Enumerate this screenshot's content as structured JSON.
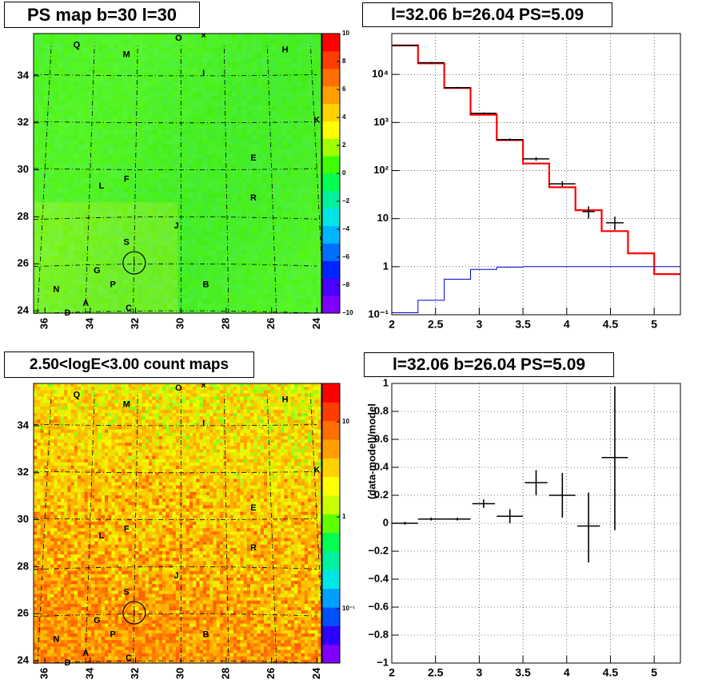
{
  "panels": {
    "ps_map": {
      "title": "PS map b=30 l=30"
    },
    "spectrum": {
      "title": "l=32.06 b=26.04 PS=5.09"
    },
    "count_map": {
      "title": "2.50<logE<3.00 count maps"
    },
    "residual": {
      "title": "l=32.06 b=26.04 PS=5.09"
    }
  },
  "map_axes": {
    "x_ticks": [
      "36",
      "34",
      "32",
      "30",
      "28",
      "26",
      "24"
    ],
    "y_ticks": [
      "24",
      "26",
      "28",
      "30",
      "32",
      "34"
    ],
    "x_range": [
      36.5,
      23.8
    ],
    "y_range": [
      23.9,
      35.8
    ]
  },
  "source_labels": [
    {
      "name": "Q",
      "l": 34.6,
      "b": 35.3
    },
    {
      "name": "O",
      "l": 30.1,
      "b": 35.6
    },
    {
      "name": "×",
      "l": 29.0,
      "b": 35.7
    },
    {
      "name": "M",
      "l": 32.4,
      "b": 34.9
    },
    {
      "name": "H",
      "l": 25.4,
      "b": 35.1
    },
    {
      "name": "I",
      "l": 29.0,
      "b": 34.1
    },
    {
      "name": "K",
      "l": 24.0,
      "b": 32.1
    },
    {
      "name": "E",
      "l": 26.8,
      "b": 30.5
    },
    {
      "name": "F",
      "l": 32.4,
      "b": 29.6
    },
    {
      "name": "L",
      "l": 33.5,
      "b": 29.3
    },
    {
      "name": "R",
      "l": 26.8,
      "b": 28.8
    },
    {
      "name": "J",
      "l": 30.2,
      "b": 27.6
    },
    {
      "name": "S",
      "l": 32.4,
      "b": 26.9
    },
    {
      "name": "G",
      "l": 33.7,
      "b": 25.7
    },
    {
      "name": "P",
      "l": 33.0,
      "b": 25.1
    },
    {
      "name": "B",
      "l": 28.9,
      "b": 25.1
    },
    {
      "name": "N",
      "l": 35.5,
      "b": 24.9
    },
    {
      "name": "A",
      "l": 34.2,
      "b": 24.3
    },
    {
      "name": "C",
      "l": 32.3,
      "b": 24.1
    },
    {
      "name": "D",
      "l": 35.0,
      "b": 23.9
    }
  ],
  "target_circle": {
    "l": 32.06,
    "b": 26.04
  },
  "ps_colorbar": {
    "range": [
      -10,
      10
    ],
    "tick_labels": [
      "10",
      "8",
      "6",
      "4",
      "2",
      "0",
      "−2",
      "−4",
      "−6",
      "−8",
      "−10"
    ],
    "colors": [
      "#7f00ff",
      "#4b00ff",
      "#0024ff",
      "#0070ff",
      "#00b4ff",
      "#00e6e6",
      "#00f0a0",
      "#00ff50",
      "#40ff00",
      "#a0ff00",
      "#ffff00",
      "#ffd200",
      "#ffa000",
      "#ff6e00",
      "#ff3c00",
      "#ff0000"
    ]
  },
  "count_colorbar": {
    "tick_labels": [
      "10",
      "1",
      "10⁻¹"
    ],
    "colors": [
      "#7f00ff",
      "#3000ff",
      "#0050ff",
      "#00a0ff",
      "#00e6e6",
      "#00f0a0",
      "#00ff50",
      "#60ff00",
      "#c8ff00",
      "#ffff00",
      "#ffd200",
      "#ffa000",
      "#ff6e00",
      "#ff3c00",
      "#ff0000"
    ]
  },
  "chart_data": [
    {
      "type": "line",
      "xlim": [
        2,
        5.3
      ],
      "ylim_log10": [
        -1,
        4.85
      ],
      "x_ticks": [
        "2",
        "2.5",
        "3",
        "3.5",
        "4",
        "4.5",
        "5"
      ],
      "y_ticks": [
        "10⁻¹",
        "1",
        "10",
        "10²",
        "10³",
        "10⁴"
      ],
      "grid": true,
      "series": [
        {
          "style": "model-total",
          "color": "#ff0000",
          "edges": [
            2.0,
            2.3,
            2.6,
            2.9,
            3.2,
            3.5,
            3.8,
            4.1,
            4.4,
            4.7,
            5.0,
            5.3
          ],
          "values": [
            40000,
            17000,
            5200,
            1450,
            430,
            140,
            45,
            15,
            5.5,
            1.9,
            0.7
          ]
        },
        {
          "style": "model-background",
          "color": "#0000cc",
          "edges": [
            2.0,
            2.3,
            2.6,
            2.9,
            3.2,
            3.5,
            3.8,
            4.1,
            4.4,
            4.7,
            5.0,
            5.3
          ],
          "values": [
            0.11,
            0.2,
            0.55,
            0.88,
            0.98,
            1.0,
            1.0,
            1.0,
            1.0,
            1.0,
            1.0
          ]
        },
        {
          "style": "data",
          "color": "#000000",
          "points": [
            {
              "x": 2.15,
              "xerr": 0.15,
              "y": 40000,
              "ylo": 39000,
              "yhi": 41000
            },
            {
              "x": 2.45,
              "xerr": 0.15,
              "y": 17500,
              "ylo": 17000,
              "yhi": 18000
            },
            {
              "x": 2.75,
              "xerr": 0.15,
              "y": 5300,
              "ylo": 5100,
              "yhi": 5500
            },
            {
              "x": 3.05,
              "xerr": 0.15,
              "y": 1550,
              "ylo": 1480,
              "yhi": 1620
            },
            {
              "x": 3.35,
              "xerr": 0.15,
              "y": 440,
              "ylo": 415,
              "yhi": 465
            },
            {
              "x": 3.65,
              "xerr": 0.15,
              "y": 175,
              "ylo": 160,
              "yhi": 190
            },
            {
              "x": 3.95,
              "xerr": 0.15,
              "y": 53,
              "ylo": 46,
              "yhi": 60
            },
            {
              "x": 4.25,
              "xerr": 0.07,
              "y": 14,
              "ylo": 10,
              "yhi": 18
            },
            {
              "x": 4.55,
              "xerr": 0.1,
              "y": 8.2,
              "ylo": 5.8,
              "yhi": 11
            }
          ]
        }
      ]
    },
    {
      "type": "scatter",
      "xlim": [
        2,
        5.3
      ],
      "ylim": [
        -1,
        1
      ],
      "ylabel": "(data-model)/model",
      "x_ticks": [
        "2",
        "2.5",
        "3",
        "3.5",
        "4",
        "4.5",
        "5"
      ],
      "y_ticks": [
        "−1",
        "−0.8",
        "−0.6",
        "−0.4",
        "−0.2",
        "0",
        "0.2",
        "0.4",
        "0.6",
        "0.8",
        "1"
      ],
      "grid": true,
      "points": [
        {
          "x": 2.15,
          "xerr": 0.15,
          "y": 0.0,
          "ylo": -0.01,
          "yhi": 0.01
        },
        {
          "x": 2.45,
          "xerr": 0.15,
          "y": 0.03,
          "ylo": 0.02,
          "yhi": 0.04
        },
        {
          "x": 2.75,
          "xerr": 0.15,
          "y": 0.03,
          "ylo": 0.02,
          "yhi": 0.04
        },
        {
          "x": 3.05,
          "xerr": 0.13,
          "y": 0.14,
          "ylo": 0.11,
          "yhi": 0.17
        },
        {
          "x": 3.35,
          "xerr": 0.15,
          "y": 0.05,
          "ylo": 0.0,
          "yhi": 0.1
        },
        {
          "x": 3.65,
          "xerr": 0.13,
          "y": 0.29,
          "ylo": 0.2,
          "yhi": 0.38
        },
        {
          "x": 3.95,
          "xerr": 0.15,
          "y": 0.2,
          "ylo": 0.04,
          "yhi": 0.36
        },
        {
          "x": 4.25,
          "xerr": 0.13,
          "y": -0.02,
          "ylo": -0.28,
          "yhi": 0.22
        },
        {
          "x": 4.55,
          "xerr": 0.15,
          "y": 0.47,
          "ylo": -0.05,
          "yhi": 0.98
        }
      ]
    }
  ]
}
